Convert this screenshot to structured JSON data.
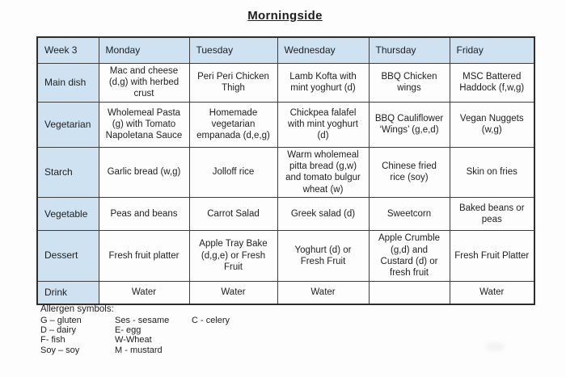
{
  "title": "Morningside",
  "table": {
    "header": [
      "Week 3",
      "Monday",
      "Tuesday",
      "Wednesday",
      "Thursday",
      "Friday"
    ],
    "rows": [
      {
        "label": "Main dish",
        "cells": [
          "Mac and cheese (d,g) with herbed crust",
          "Peri Peri Chicken Thigh",
          "Lamb Kofta with mint yoghurt (d)",
          "BBQ Chicken wings",
          "MSC Battered Haddock (f,w,g)"
        ]
      },
      {
        "label": "Vegetarian",
        "cells": [
          "Wholemeal Pasta (g) with Tomato Napoletana Sauce",
          "Homemade vegetarian empanada (d,e,g)",
          "Chickpea falafel with mint yoghurt (d)",
          "BBQ Cauliflower ‘Wings’ (g,e,d)",
          "Vegan Nuggets (w,g)"
        ]
      },
      {
        "label": "Starch",
        "cells": [
          "Garlic bread (w,g)",
          "Jolloff rice",
          "Warm wholemeal pitta bread (g,w) and tomato bulgur wheat (w)",
          "Chinese fried rice (soy)",
          "Skin on fries"
        ]
      },
      {
        "label": "Vegetable",
        "cells": [
          "Peas and beans",
          "Carrot Salad",
          "Greek salad (d)",
          "Sweetcorn",
          "Baked beans or peas"
        ]
      },
      {
        "label": "Dessert",
        "cells": [
          "Fresh fruit platter",
          "Apple Tray Bake (d,g,e) or Fresh Fruit",
          "Yoghurt (d) or Fresh Fruit",
          "Apple Crumble (g,d) and Custard (d) or fresh fruit",
          "Fresh Fruit Platter"
        ]
      },
      {
        "label": "Drink",
        "cells": [
          "Water",
          "Water",
          "Water",
          "",
          "Water"
        ]
      }
    ]
  },
  "legend": {
    "heading": "Allergen symbols:",
    "columns": [
      [
        "G – gluten",
        "D – dairy",
        "F- fish",
        "Soy – soy"
      ],
      [
        "Ses - sesame",
        "E- egg",
        "W-Wheat",
        "M - mustard"
      ],
      [
        "C - celery"
      ]
    ]
  },
  "colors": {
    "header_bg": "#cee2f2",
    "border": "#3d3d3d",
    "text": "#1e1e1e",
    "background": "#fdfdfd"
  }
}
